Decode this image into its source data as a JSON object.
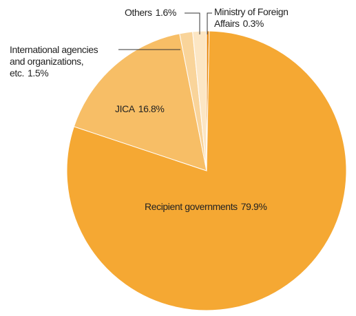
{
  "chart_data": {
    "type": "pie",
    "categories": [
      "Ministry of Foreign Affairs",
      "Recipient governments",
      "JICA",
      "International agencies and organizations, etc.",
      "Others"
    ],
    "values": [
      0.3,
      79.9,
      16.8,
      1.5,
      1.6
    ],
    "value_labels": [
      "0.3%",
      "79.9%",
      "16.8%",
      "1.5%",
      "1.6%"
    ],
    "colors": [
      "#e8870e",
      "#f5a833",
      "#f7be66",
      "#f9d49a",
      "#fce6c4"
    ]
  }
}
